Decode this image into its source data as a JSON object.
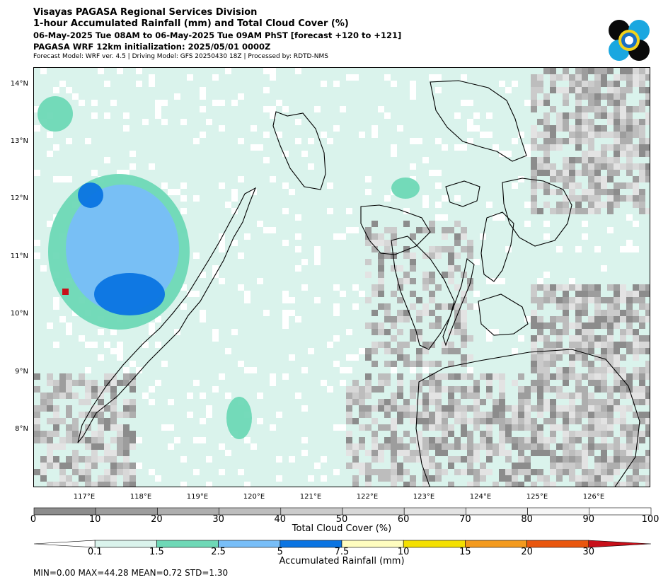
{
  "header": {
    "title": "Visayas PAGASA Regional Services Division",
    "subtitle": "1-hour Accumulated Rainfall (mm) and Total Cloud Cover (%)",
    "valid_time": "06-May-2025 Tue 08AM to 06-May-2025 Tue 09AM PhST [forecast +120 to +121]",
    "initialization": "PAGASA WRF 12km initialization: 2025/05/01 0000Z",
    "model_info": "Forecast Model: WRF ver. 4.5 | Driving Model: GFS 20250430 18Z | Processed by: RDTD-NMS"
  },
  "map": {
    "lat_labels": [
      "14°N",
      "13°N",
      "12°N",
      "11°N",
      "10°N",
      "9°N",
      "8°N"
    ],
    "lon_labels": [
      "117°E",
      "118°E",
      "119°E",
      "120°E",
      "121°E",
      "122°E",
      "123°E",
      "124°E",
      "125°E",
      "126°E"
    ],
    "colors": {
      "ocean_cloud_light": "#daf3ec",
      "cloud_dark": "#8c8c8c",
      "rain_green": "#6ed8b6",
      "rain_light_blue": "#78bef8",
      "rain_blue": "#0a74e2",
      "rain_red": "#c8101a"
    }
  },
  "cloud_colorbar": {
    "title": "Total Cloud Cover (%)",
    "ticks": [
      "0",
      "10",
      "20",
      "30",
      "40",
      "50",
      "60",
      "70",
      "80",
      "90",
      "100"
    ],
    "colors": [
      "#8c8c8c",
      "#9d9d9d",
      "#aeaeae",
      "#bdbdbd",
      "#cbcbcb",
      "#d8d8d8",
      "#e3e3e3",
      "#ededed",
      "#f6f6f6",
      "#ffffff"
    ]
  },
  "rain_colorbar": {
    "title": "Accumulated Rainfall (mm)",
    "ticks": [
      "0.1",
      "1.5",
      "2.5",
      "5",
      "7.5",
      "10",
      "15",
      "20",
      "30"
    ],
    "colors": [
      "#ffffff",
      "#daf3ec",
      "#6ed8b6",
      "#78bef8",
      "#0a74e2",
      "#fffdbf",
      "#f4e000",
      "#f39a1e",
      "#e9560e",
      "#c8101a",
      "#c8101a"
    ]
  },
  "stats": "MIN=0.00   MAX=44.28   MEAN=0.72   STD=1.30"
}
